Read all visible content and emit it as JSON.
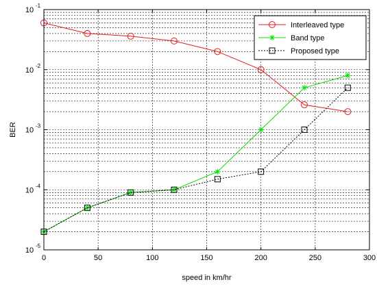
{
  "chart_data": {
    "type": "line",
    "xlabel": "speed in km/hr",
    "ylabel": "BER",
    "xlim": [
      0,
      300
    ],
    "ylim": [
      1e-05,
      0.1
    ],
    "yscale": "log",
    "grid": true,
    "legend_placement": "top-right",
    "x_ticks": [
      0,
      50,
      100,
      150,
      200,
      250,
      300
    ],
    "x_tick_labels": [
      "0",
      "50",
      "100",
      "150",
      "200",
      "250",
      "300"
    ],
    "y_ticks": [
      1e-05,
      0.0001,
      0.001,
      0.01,
      0.1
    ],
    "y_tick_labels": [
      {
        "base": "10",
        "exp": "-5"
      },
      {
        "base": "10",
        "exp": "-4"
      },
      {
        "base": "10",
        "exp": "-3"
      },
      {
        "base": "10",
        "exp": "-2"
      },
      {
        "base": "10",
        "exp": "-1"
      }
    ],
    "series": [
      {
        "name": "Interleaved type",
        "color": "#e41a1c",
        "marker": "circle",
        "line_style": "solid",
        "x": [
          0,
          40,
          80,
          120,
          160,
          200,
          240,
          280
        ],
        "y": [
          0.06,
          0.04,
          0.036,
          0.03,
          0.02,
          0.01,
          0.0026,
          0.002
        ]
      },
      {
        "name": "Band type",
        "color": "#00dd00",
        "marker": "star",
        "line_style": "solid",
        "x": [
          0,
          40,
          80,
          120,
          160,
          200,
          240,
          280
        ],
        "y": [
          2e-05,
          5e-05,
          9e-05,
          0.0001,
          0.0002,
          0.001,
          0.005,
          0.008
        ]
      },
      {
        "name": "Proposed type",
        "color": "#000000",
        "marker": "square",
        "line_style": "dotted",
        "x": [
          0,
          40,
          80,
          120,
          160,
          200,
          240,
          280
        ],
        "y": [
          2e-05,
          5e-05,
          9e-05,
          0.0001,
          0.00015,
          0.0002,
          0.001,
          0.005
        ]
      }
    ]
  }
}
